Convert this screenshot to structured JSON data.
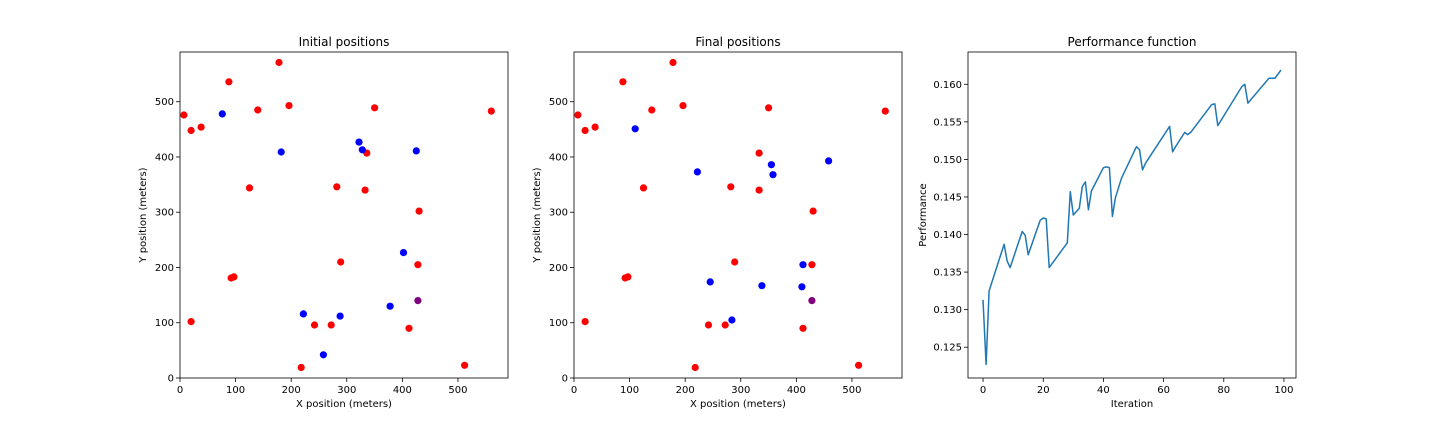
{
  "colors": {
    "red": "#ff0000",
    "blue": "#0000ff",
    "purple": "#800080",
    "line": "#1f77b4"
  },
  "chart_data": [
    {
      "type": "scatter",
      "title": "Initial positions",
      "xlabel": "X position (meters)",
      "ylabel": "Y position (meters)",
      "xlim": [
        0,
        590
      ],
      "ylim": [
        0,
        590
      ],
      "xticks": [
        0,
        100,
        200,
        300,
        400,
        500
      ],
      "yticks": [
        0,
        100,
        200,
        300,
        400,
        500
      ],
      "xtick_labels": [
        "0",
        "100",
        "200",
        "300",
        "400",
        "500"
      ],
      "ytick_labels": [
        "0",
        "100",
        "200",
        "300",
        "400",
        "500"
      ],
      "series": [
        {
          "color": "red",
          "points": [
            [
              7,
              476
            ],
            [
              20,
              448
            ],
            [
              38,
              454
            ],
            [
              88,
              536
            ],
            [
              178,
              571
            ],
            [
              140,
              485
            ],
            [
              196,
              493
            ],
            [
              350,
              489
            ],
            [
              560,
              483
            ],
            [
              336,
              407
            ],
            [
              125,
              344
            ],
            [
              282,
              346
            ],
            [
              333,
              340
            ],
            [
              430,
              302
            ],
            [
              289,
              210
            ],
            [
              428,
              205
            ],
            [
              92,
              181
            ],
            [
              97,
              183
            ],
            [
              20,
              102
            ],
            [
              242,
              96
            ],
            [
              272,
              96
            ],
            [
              412,
              90
            ],
            [
              218,
              19
            ],
            [
              512,
              23
            ]
          ]
        },
        {
          "color": "blue",
          "points": [
            [
              76,
              478
            ],
            [
              182,
              409
            ],
            [
              322,
              427
            ],
            [
              328,
              413
            ],
            [
              425,
              411
            ],
            [
              402,
              227
            ],
            [
              378,
              130
            ],
            [
              222,
              116
            ],
            [
              288,
              112
            ],
            [
              258,
              42
            ]
          ]
        },
        {
          "color": "purple",
          "points": [
            [
              428,
              140
            ]
          ]
        }
      ]
    },
    {
      "type": "scatter",
      "title": "Final positions",
      "xlabel": "X position (meters)",
      "ylabel": "Y position (meters)",
      "xlim": [
        0,
        590
      ],
      "ylim": [
        0,
        590
      ],
      "xticks": [
        0,
        100,
        200,
        300,
        400,
        500
      ],
      "yticks": [
        0,
        100,
        200,
        300,
        400,
        500
      ],
      "xtick_labels": [
        "0",
        "100",
        "200",
        "300",
        "400",
        "500"
      ],
      "ytick_labels": [
        "0",
        "100",
        "200",
        "300",
        "400",
        "500"
      ],
      "series": [
        {
          "color": "red",
          "points": [
            [
              7,
              476
            ],
            [
              20,
              448
            ],
            [
              38,
              454
            ],
            [
              88,
              536
            ],
            [
              178,
              571
            ],
            [
              140,
              485
            ],
            [
              196,
              493
            ],
            [
              350,
              489
            ],
            [
              560,
              483
            ],
            [
              333,
              407
            ],
            [
              125,
              344
            ],
            [
              282,
              346
            ],
            [
              333,
              340
            ],
            [
              430,
              302
            ],
            [
              289,
              210
            ],
            [
              428,
              205
            ],
            [
              92,
              181
            ],
            [
              97,
              183
            ],
            [
              20,
              102
            ],
            [
              242,
              96
            ],
            [
              272,
              96
            ],
            [
              412,
              90
            ],
            [
              218,
              19
            ],
            [
              512,
              23
            ]
          ]
        },
        {
          "color": "blue",
          "points": [
            [
              110,
              451
            ],
            [
              222,
              373
            ],
            [
              355,
              386
            ],
            [
              358,
              368
            ],
            [
              458,
              393
            ],
            [
              245,
              174
            ],
            [
              338,
              167
            ],
            [
              412,
              205
            ],
            [
              410,
              165
            ],
            [
              284,
              105
            ]
          ]
        },
        {
          "color": "purple",
          "points": [
            [
              428,
              140
            ]
          ]
        }
      ]
    },
    {
      "type": "line",
      "title": "Performance function",
      "xlabel": "Iteration",
      "ylabel": "Performance",
      "xlim": [
        -5,
        104
      ],
      "ylim": [
        0.1209,
        0.1643
      ],
      "xticks": [
        0,
        20,
        40,
        60,
        80,
        100
      ],
      "yticks": [
        0.125,
        0.13,
        0.135,
        0.14,
        0.145,
        0.15,
        0.155,
        0.16
      ],
      "xtick_labels": [
        "0",
        "20",
        "40",
        "60",
        "80",
        "100"
      ],
      "ytick_labels": [
        "0.125",
        "0.130",
        "0.135",
        "0.140",
        "0.145",
        "0.150",
        "0.155",
        "0.160"
      ],
      "series": [
        {
          "x": [
            0,
            1,
            2,
            7,
            8,
            9,
            13,
            14,
            15,
            19,
            20,
            21,
            22,
            28,
            29,
            30,
            32,
            33,
            34,
            35,
            36,
            40,
            41,
            42,
            43,
            44,
            46,
            51,
            52,
            53,
            54,
            62,
            63,
            64,
            67,
            68,
            69,
            76,
            77,
            78,
            86,
            87,
            88,
            95,
            97,
            99
          ],
          "y": [
            0.1313,
            0.1227,
            0.1325,
            0.1387,
            0.1365,
            0.1356,
            0.1404,
            0.1399,
            0.1373,
            0.1419,
            0.1422,
            0.1421,
            0.1356,
            0.1389,
            0.1457,
            0.1426,
            0.1435,
            0.1464,
            0.147,
            0.1433,
            0.1458,
            0.1489,
            0.149,
            0.1489,
            0.1424,
            0.1449,
            0.1475,
            0.1517,
            0.1513,
            0.1486,
            0.1495,
            0.1544,
            0.151,
            0.1517,
            0.1536,
            0.1533,
            0.1536,
            0.1573,
            0.1574,
            0.1545,
            0.1597,
            0.16,
            0.1575,
            0.1608,
            0.1608,
            0.1619
          ]
        }
      ]
    }
  ]
}
